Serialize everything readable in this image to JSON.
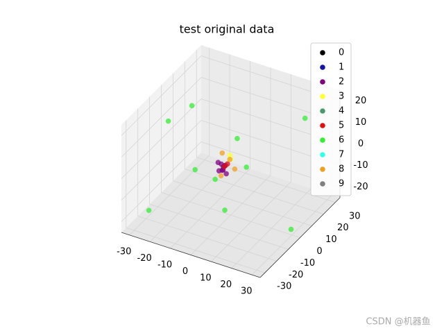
{
  "chart_data": {
    "type": "scatter3d",
    "title": "test original data",
    "xlim": [
      -34,
      34
    ],
    "ylim": [
      -34,
      34
    ],
    "zlim": [
      -25,
      25
    ],
    "xticks": [
      -30,
      -20,
      -10,
      0,
      10,
      20,
      30
    ],
    "yticks": [
      -30,
      -20,
      -10,
      0,
      10,
      20,
      30
    ],
    "zticks": [
      -20,
      -10,
      0,
      10,
      20
    ],
    "grid": true,
    "legend": "upper right",
    "series": [
      {
        "name": "0",
        "color": "#000000",
        "x": [],
        "y": [],
        "z": []
      },
      {
        "name": "1",
        "color": "#1515a5",
        "x": [
          -3
        ],
        "y": [
          -1
        ],
        "z": [
          -3
        ]
      },
      {
        "name": "2",
        "color": "#800080",
        "x": [
          -3,
          -4,
          -2,
          -5,
          -3,
          -1,
          -4,
          -2
        ],
        "y": [
          -2,
          -1,
          -3,
          -2,
          0,
          -2,
          -3,
          -1
        ],
        "z": [
          -4,
          -2,
          -3,
          -1,
          -3,
          -5,
          -4,
          -2
        ]
      },
      {
        "name": "3",
        "color": "#ffff33",
        "x": [
          0,
          -1
        ],
        "y": [
          0,
          1
        ],
        "z": [
          1,
          2
        ]
      },
      {
        "name": "4",
        "color": "#4a9a6a",
        "x": [],
        "y": [],
        "z": []
      },
      {
        "name": "5",
        "color": "#e01010",
        "x": [
          -1,
          -2
        ],
        "y": [
          -1,
          -2
        ],
        "z": [
          -1,
          -2
        ]
      },
      {
        "name": "6",
        "color": "#33ee33",
        "x": [
          -19,
          -30,
          -6,
          23.5,
          -18,
          -7,
          6,
          -28,
          0,
          29.6
        ],
        "y": [
          0,
          -1,
          16,
          22.5,
          1,
          -1,
          3,
          -21,
          -5,
          0
        ],
        "z": [
          20,
          10,
          0,
          15,
          -10,
          -10,
          -2.5,
          -20,
          -20,
          -22.5
        ]
      },
      {
        "name": "7",
        "color": "#33ffee",
        "x": [],
        "y": [],
        "z": []
      },
      {
        "name": "8",
        "color": "#f0a020",
        "x": [
          -3,
          2,
          -1,
          -3
        ],
        "y": [
          -2,
          0,
          1,
          -3
        ],
        "z": [
          4,
          -3,
          0,
          -6
        ]
      },
      {
        "name": "9",
        "color": "#808080",
        "x": [],
        "y": [],
        "z": []
      }
    ],
    "watermark": "CSDN @机器鱼"
  }
}
